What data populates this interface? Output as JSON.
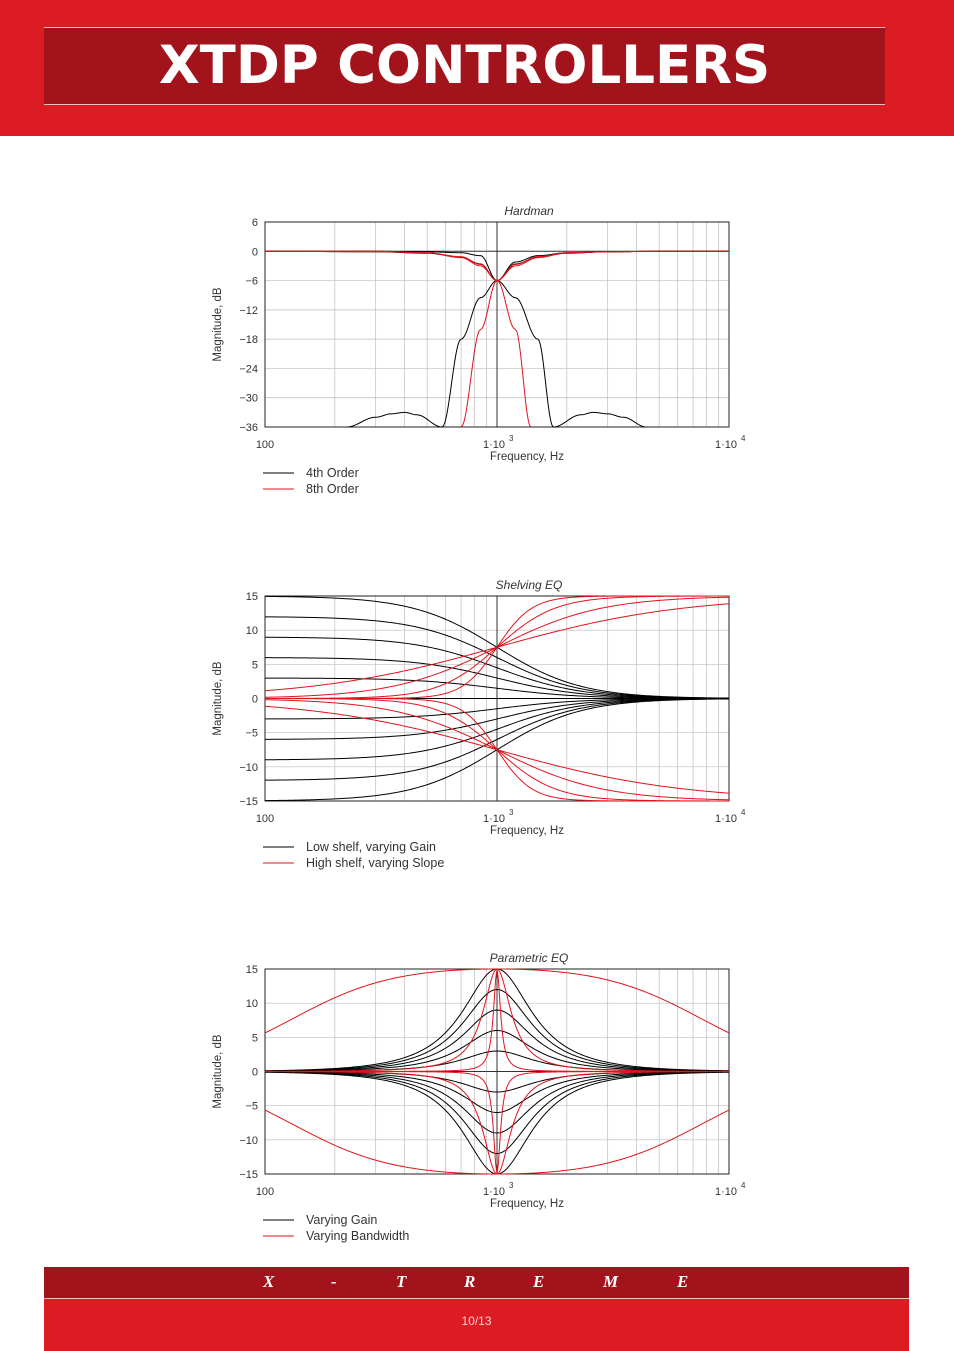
{
  "header": {
    "title": "XTDP CONTROLLERS"
  },
  "footer": {
    "brand_letters": [
      "X",
      "-",
      "T",
      "R",
      "E",
      "M",
      "E"
    ],
    "page_number": "10/13"
  },
  "colors": {
    "header_band": "#dc1b23",
    "header_box": "#a3131b",
    "series_black": "#000000",
    "series_red": "#e0141c"
  },
  "chart_data": [
    {
      "type": "line",
      "title": "Hardman",
      "xlabel": "Frequency, Hz",
      "ylabel": "Magnitude, dB",
      "xscale": "log",
      "xlim": [
        100,
        10000
      ],
      "ylim": [
        -36,
        6
      ],
      "x_ticks": [
        {
          "value": 100,
          "label": "100"
        },
        {
          "value": 1000,
          "base": "1·10",
          "exp": "3"
        },
        {
          "value": 10000,
          "base": "1·10",
          "exp": "4"
        }
      ],
      "y_ticks": [
        "6",
        "0",
        "−6",
        "−12",
        "−18",
        "−24",
        "−30",
        "−36"
      ],
      "crossover_hz": 1000,
      "grid": true,
      "legend": {
        "placement": "below",
        "entries": [
          {
            "name": "4th Order",
            "color": "#000000"
          },
          {
            "name": "8th Order",
            "color": "#e0141c"
          }
        ]
      },
      "series": [
        {
          "name": "4th Order",
          "color": "#000000",
          "curves": [
            {
              "x": [
                100,
                300,
                500,
                700,
                850,
                1000,
                1200,
                1500,
                2000,
                3000,
                5000,
                10000
              ],
              "y": [
                0,
                -0.1,
                -0.4,
                -1.2,
                -2.6,
                -6,
                -2.2,
                -0.9,
                -0.3,
                -0.1,
                0,
                0
              ]
            },
            {
              "x": [
                100,
                300,
                500,
                700,
                850,
                1000,
                1200,
                1500,
                2000,
                3000,
                5000,
                10000
              ],
              "y": [
                0,
                0,
                -0.1,
                -0.3,
                -0.9,
                -6,
                -2.6,
                -1.2,
                -0.4,
                -0.1,
                0,
                0
              ]
            },
            {
              "x": [
                225,
                300,
                350,
                400,
                450,
                580,
                700,
                850,
                1000,
                1200,
                1500,
                1750,
                2300,
                2600,
                3000,
                3500,
                4400
              ],
              "y": [
                -36,
                -34,
                -33.3,
                -33,
                -33.5,
                -36,
                -18,
                -9.5,
                -6,
                -9.5,
                -18,
                -36,
                -33.5,
                -33,
                -33.3,
                -34,
                -36
              ]
            }
          ]
        },
        {
          "name": "8th Order",
          "color": "#e0141c",
          "curves": [
            {
              "x": [
                100,
                300,
                500,
                700,
                850,
                1000,
                1200,
                1500,
                2000,
                3000,
                5000,
                10000
              ],
              "y": [
                0,
                -0.1,
                -0.3,
                -1.3,
                -3,
                -6,
                -2.7,
                -1.1,
                -0.3,
                -0.1,
                0,
                0
              ]
            },
            {
              "x": [
                100,
                300,
                500,
                700,
                850,
                1000,
                1200,
                1500,
                2000,
                3000,
                5000,
                10000
              ],
              "y": [
                0,
                0,
                -0.3,
                -1.1,
                -2.7,
                -6,
                -3,
                -1.3,
                -0.3,
                -0.1,
                0,
                0
              ]
            },
            {
              "x": [
                700,
                850,
                1000,
                1200,
                1400
              ],
              "y": [
                -36,
                -16,
                -6,
                -16,
                -36
              ]
            }
          ]
        }
      ]
    },
    {
      "type": "line",
      "title": "Shelving EQ",
      "xlabel": "Frequency, Hz",
      "ylabel": "Magnitude, dB",
      "xscale": "log",
      "xlim": [
        100,
        10000
      ],
      "ylim": [
        -15,
        15
      ],
      "x_ticks": [
        {
          "value": 100,
          "label": "100"
        },
        {
          "value": 1000,
          "base": "1·10",
          "exp": "3"
        },
        {
          "value": 10000,
          "base": "1·10",
          "exp": "4"
        }
      ],
      "y_ticks": [
        "15",
        "10",
        "5",
        "0",
        "−5",
        "−10",
        "−15"
      ],
      "grid": true,
      "legend": {
        "placement": "below",
        "entries": [
          {
            "name": "Low shelf, varying Gain",
            "color": "#000000"
          },
          {
            "name": "High shelf, varying Slope",
            "color": "#e0141c"
          }
        ]
      },
      "low_shelf_gains_db": [
        15,
        12,
        9,
        6,
        3,
        0,
        -3,
        -6,
        -9,
        -12,
        -15
      ],
      "low_shelf_fc_hz": 1000,
      "high_shelf_gains_db": [
        15,
        -15
      ],
      "high_shelf_fc_hz": 1000,
      "high_shelf_slopes": [
        0.15,
        0.25,
        0.45,
        0.8
      ]
    },
    {
      "type": "line",
      "title": "Parametric EQ",
      "xlabel": "Frequency, Hz",
      "ylabel": "Magnitude, dB",
      "xscale": "log",
      "xlim": [
        100,
        10000
      ],
      "ylim": [
        -15,
        15
      ],
      "x_ticks": [
        {
          "value": 100,
          "label": "100"
        },
        {
          "value": 1000,
          "base": "1·10",
          "exp": "3"
        },
        {
          "value": 10000,
          "base": "1·10",
          "exp": "4"
        }
      ],
      "y_ticks": [
        "15",
        "10",
        "5",
        "0",
        "−5",
        "−10",
        "−15"
      ],
      "grid": true,
      "legend": {
        "placement": "below",
        "entries": [
          {
            "name": "Varying Gain",
            "color": "#000000"
          },
          {
            "name": "Varying Bandwidth",
            "color": "#e0141c"
          }
        ]
      },
      "center_hz": 1000,
      "varying_gain_db": [
        15,
        12,
        9,
        6,
        3,
        -3,
        -6,
        -9,
        -12,
        -15
      ],
      "varying_gain_q": 1.2,
      "varying_bandwidth_gain_db": [
        15,
        -15
      ],
      "varying_bandwidth_q": [
        0.13,
        3,
        12
      ]
    }
  ]
}
